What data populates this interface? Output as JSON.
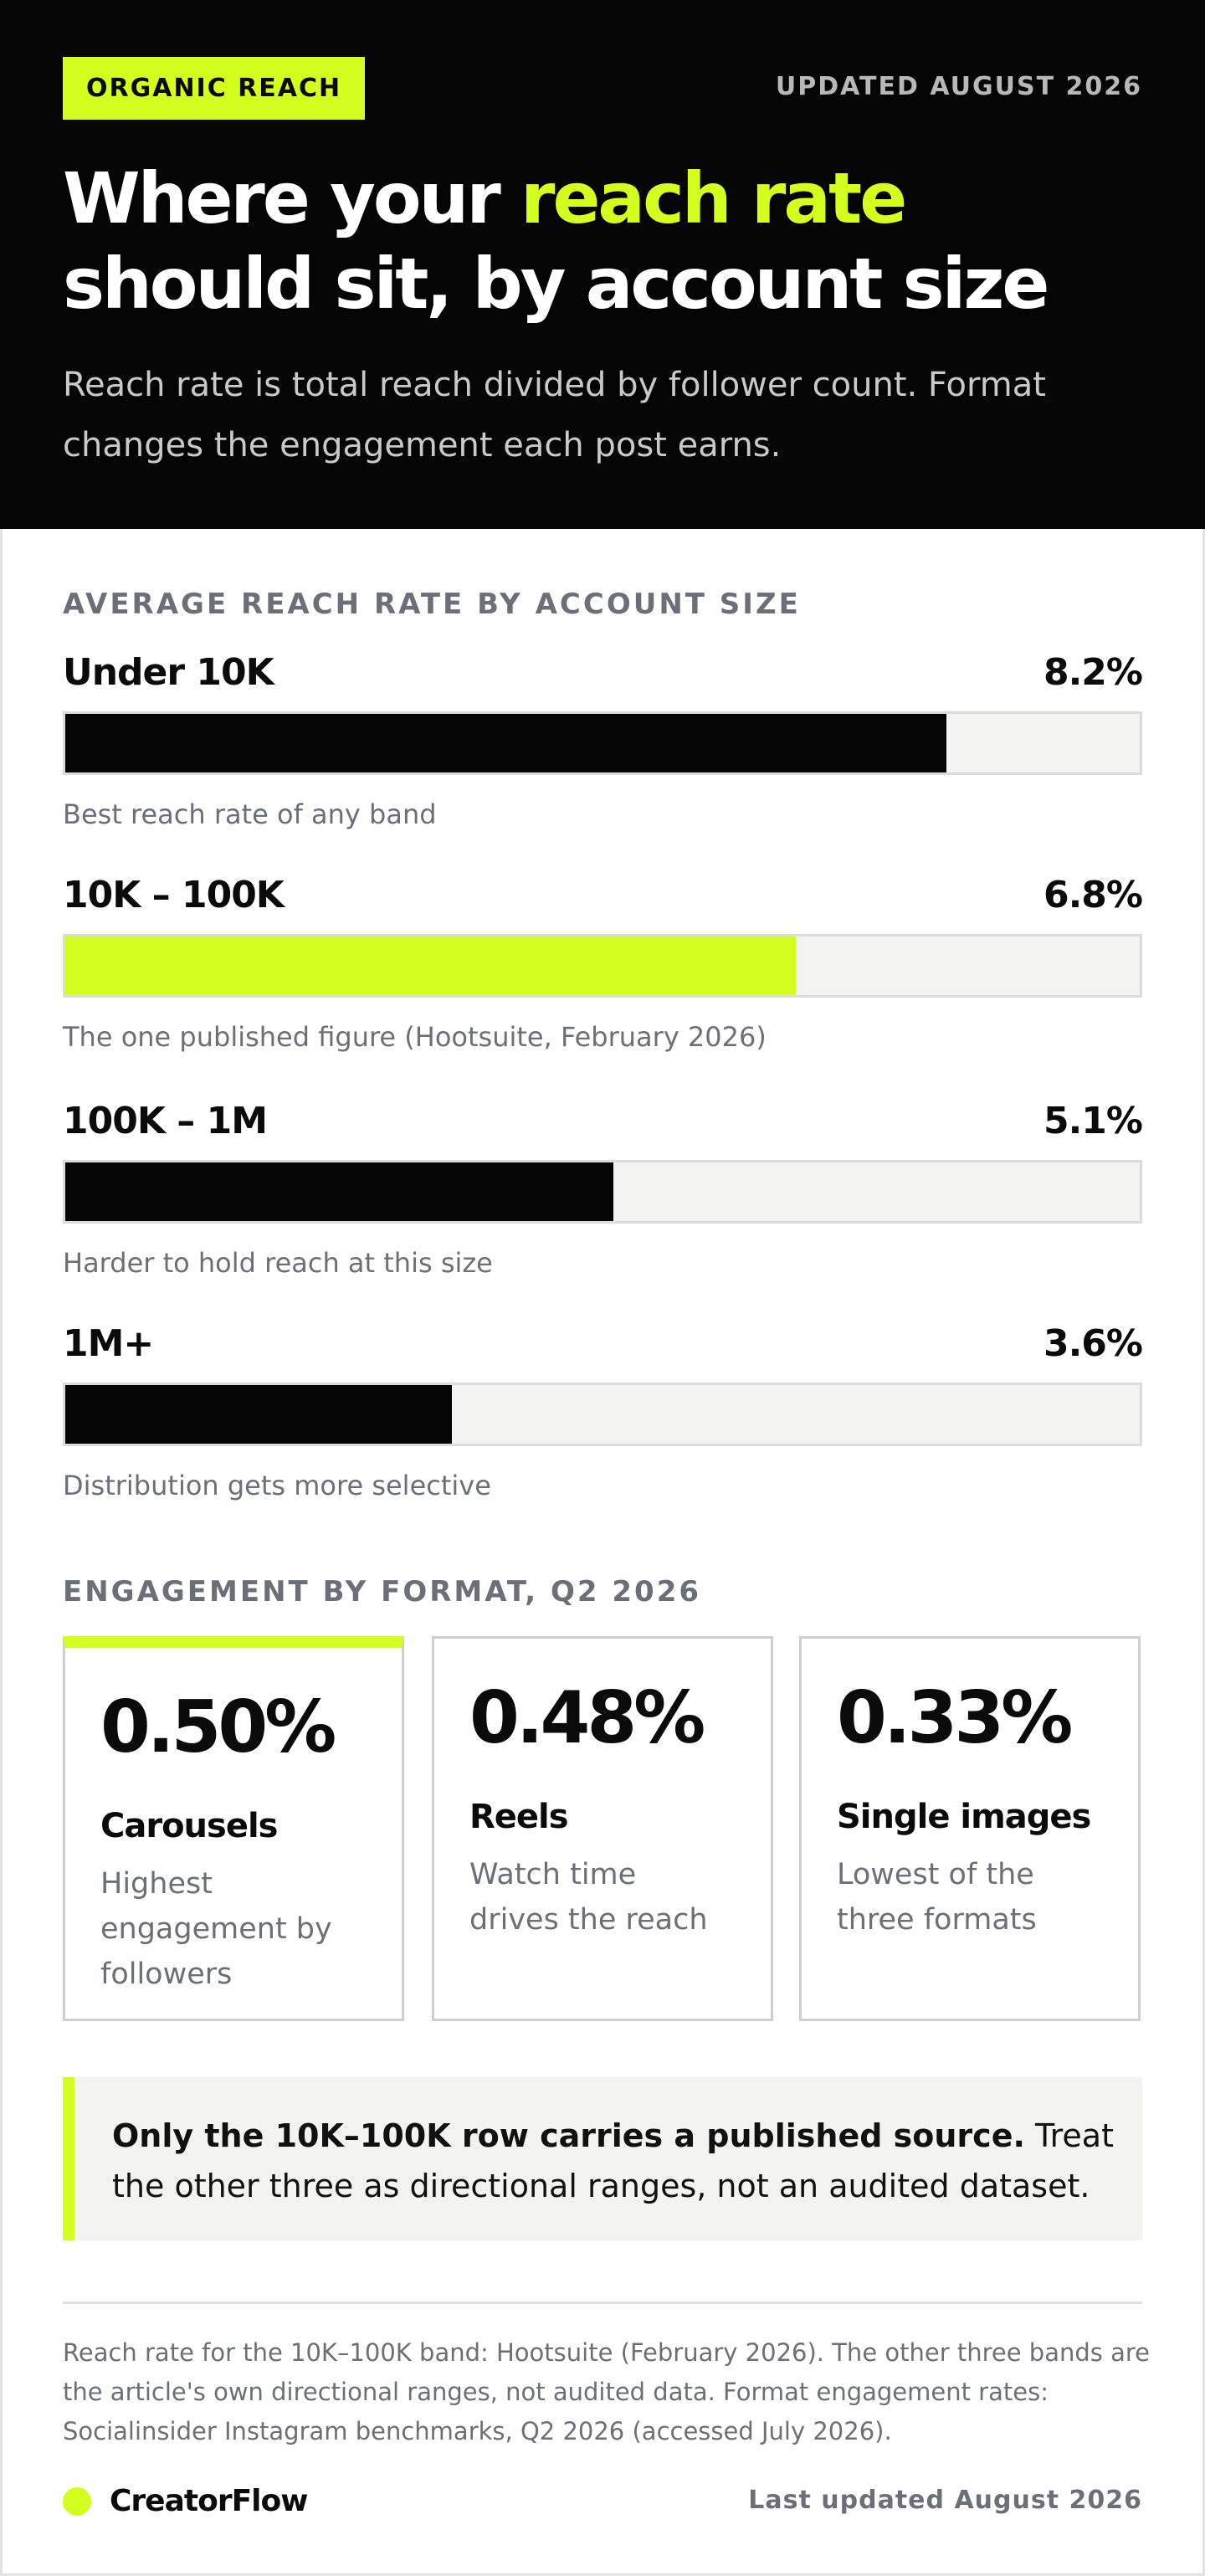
{
  "header": {
    "badge": "ORGANIC REACH",
    "updated": "UPDATED AUGUST 2026",
    "title_before": "Where your ",
    "title_accent": "reach rate",
    "title_after": " should sit, by account size",
    "subtitle": "Reach rate is total reach divided by follower count. Format changes the engagement each post earns."
  },
  "colors": {
    "accent": "#d4ff1e",
    "dark": "#050505",
    "track": "#f3f3f1",
    "muted": "#6b6f78"
  },
  "chart_data": [
    {
      "type": "bar",
      "orientation": "horizontal",
      "title": "AVERAGE REACH RATE BY ACCOUNT SIZE",
      "unit": "%",
      "xlim": [
        0,
        10
      ],
      "grid": false,
      "categories": [
        "Under 10K",
        "10K – 100K",
        "100K – 1M",
        "1M+"
      ],
      "values": [
        8.2,
        6.8,
        5.1,
        3.6
      ],
      "value_labels": [
        "8.2%",
        "6.8%",
        "5.1%",
        "3.6%"
      ],
      "notes": [
        "Best reach rate of any band",
        "The one published figure (Hootsuite, February 2026)",
        "Harder to hold reach at this size",
        "Distribution gets more selective"
      ],
      "highlight_index": 1
    },
    {
      "type": "table",
      "title": "ENGAGEMENT BY FORMAT, Q2 2026",
      "categories": [
        "Carousels",
        "Reels",
        "Single images"
      ],
      "values": [
        0.5,
        0.48,
        0.33
      ],
      "value_labels": [
        "0.50%",
        "0.48%",
        "0.33%"
      ],
      "descriptions": [
        "Highest engagement by followers",
        "Watch time drives the reach",
        "Lowest of the three formats"
      ],
      "highlight_index": 0
    }
  ],
  "callout": {
    "bold": "Only the 10K–100K row carries a published source.",
    "rest": " Treat the other three as directional ranges, not an audited dataset."
  },
  "footnote": "Reach rate for the 10K–100K band: Hootsuite (February 2026). The other three bands are the article's own directional ranges, not audited data. Format engagement rates: Socialinsider Instagram benchmarks, Q2 2026 (accessed July 2026).",
  "footer": {
    "brand": "CreatorFlow",
    "last_updated": "Last updated August 2026"
  }
}
